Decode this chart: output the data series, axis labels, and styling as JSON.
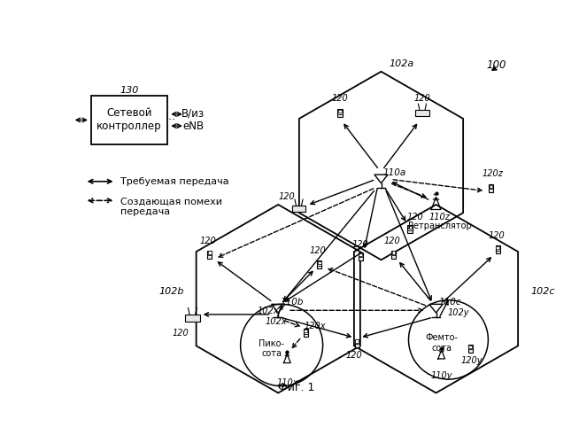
{
  "title": "Фиг. 1",
  "background": "#ffffff",
  "fig_label": "100",
  "legend_solid": "Требуемая передача",
  "legend_dashed": "Создающая помехи\nпередача",
  "ctrl_label": "Сетевой\nконтроллер",
  "ctrl_ref": "130",
  "enb_label": "В/из\neNB",
  "relay_label": "Ретранслятор",
  "pico_label": "Пико-\nсота",
  "femto_label": "Фемто-\nсота"
}
